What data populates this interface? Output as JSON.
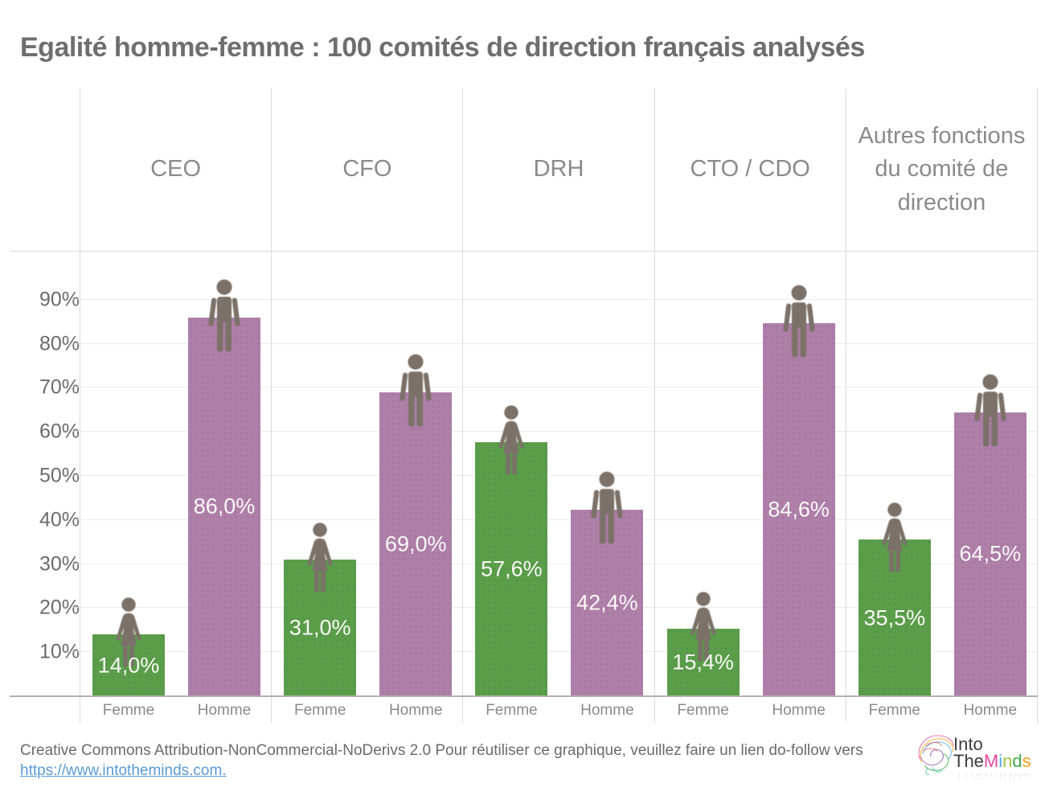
{
  "title": "Egalité homme-femme : 100 comités de direction français analysés",
  "chart_data": {
    "type": "bar",
    "title": "Egalité homme-femme : 100 comités de direction français analysés",
    "categories": [
      "CEO",
      "CFO",
      "DRH",
      "CTO / CDO",
      "Autres fonctions du comité de direction"
    ],
    "series": [
      {
        "name": "Femme",
        "color": "#5a9e4a",
        "icon": "female-pictogram",
        "values": [
          14.0,
          31.0,
          57.6,
          15.4,
          35.5
        ],
        "labels": [
          "14,0%",
          "31,0%",
          "57,6%",
          "15,4%",
          "35,5%"
        ]
      },
      {
        "name": "Homme",
        "color": "#ae7fa9",
        "icon": "male-pictogram",
        "values": [
          86.0,
          69.0,
          42.4,
          84.6,
          64.5
        ],
        "labels": [
          "86,0%",
          "69,0%",
          "42,4%",
          "84,6%",
          "64,5%"
        ]
      }
    ],
    "group_tick_labels": [
      "Femme",
      "Homme"
    ],
    "y_ticks": [
      {
        "value": 10,
        "label": "10%"
      },
      {
        "value": 20,
        "label": "20%"
      },
      {
        "value": 30,
        "label": "30%"
      },
      {
        "value": 40,
        "label": "40%"
      },
      {
        "value": 50,
        "label": "50%"
      },
      {
        "value": 60,
        "label": "60%"
      },
      {
        "value": 70,
        "label": "70%"
      },
      {
        "value": 80,
        "label": "80%"
      },
      {
        "value": 90,
        "label": "90%"
      }
    ],
    "ylim": [
      0,
      100
    ],
    "grid": "horizontal-on",
    "legend_position": "none",
    "icon_color": "#7b7168",
    "value_label_color": "#faf8f6"
  },
  "footer": {
    "license_text": "Creative Commons Attribution-NonCommercial-NoDerivs 2.0 Pour réutiliser ce graphique, veuillez faire un lien do-follow vers",
    "link_text": "https://www.intotheminds.com."
  },
  "logo": {
    "line1": "Into",
    "line2_prefix": "The",
    "line2_brand": "Minds",
    "brand_letters": [
      {
        "ch": "M",
        "color": "#e8489b"
      },
      {
        "ch": "i",
        "color": "#56a9e8"
      },
      {
        "ch": "n",
        "color": "#a0c83c"
      },
      {
        "ch": "d",
        "color": "#3eaa49"
      },
      {
        "ch": "s",
        "color": "#f5a216"
      }
    ]
  }
}
